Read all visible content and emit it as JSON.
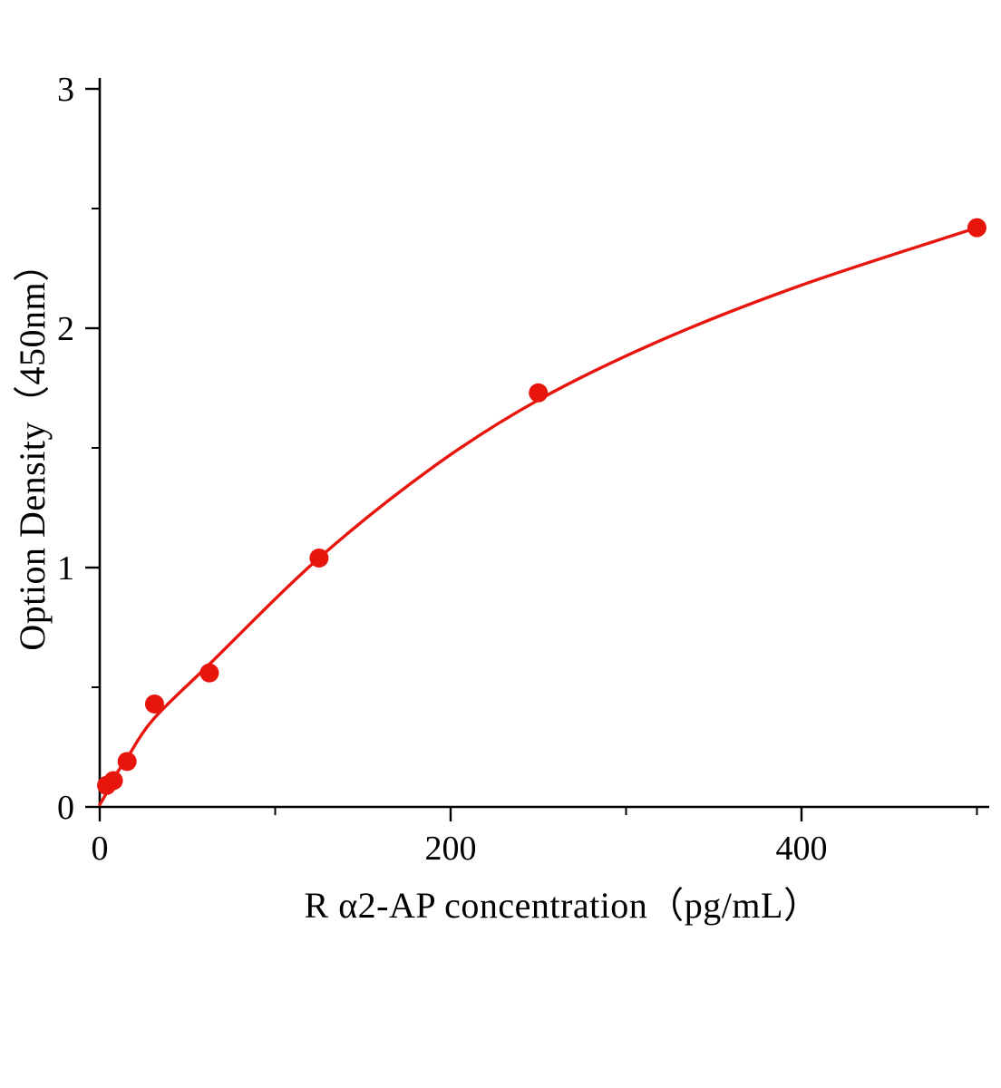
{
  "figure": {
    "background_color": "#ffffff",
    "axis_color": "#000000",
    "accent_color": "#e8150d"
  },
  "chart_data": {
    "type": "scatter",
    "title": "",
    "xlabel": "R α2-AP concentration（pg/mL）",
    "ylabel": "Option Density（450nm）",
    "xlim": [
      0,
      507
    ],
    "ylim": [
      0,
      3
    ],
    "x_ticks": [
      0,
      200,
      400
    ],
    "x_minor_ticks": [
      100,
      300,
      500
    ],
    "y_ticks": [
      0,
      1,
      2,
      3
    ],
    "y_minor_ticks": [
      0.5,
      1.5,
      2.5
    ],
    "grid": false,
    "legend": "none",
    "point_color": "#e8150d",
    "line_color": "#e8150d",
    "series": [
      {
        "name": "standard-points",
        "type": "scatter",
        "x": [
          3.9,
          7.8,
          15.6,
          31.25,
          62.5,
          125,
          250,
          500
        ],
        "y": [
          0.09,
          0.11,
          0.19,
          0.43,
          0.56,
          1.04,
          1.73,
          2.42
        ]
      },
      {
        "name": "fitted-curve",
        "type": "line",
        "x": [
          0,
          4,
          8,
          16,
          31,
          63,
          125,
          190,
          250,
          320,
          400,
          500
        ],
        "y": [
          0.01,
          0.06,
          0.12,
          0.21,
          0.37,
          0.6,
          1.04,
          1.42,
          1.7,
          1.95,
          2.18,
          2.42
        ]
      }
    ]
  }
}
